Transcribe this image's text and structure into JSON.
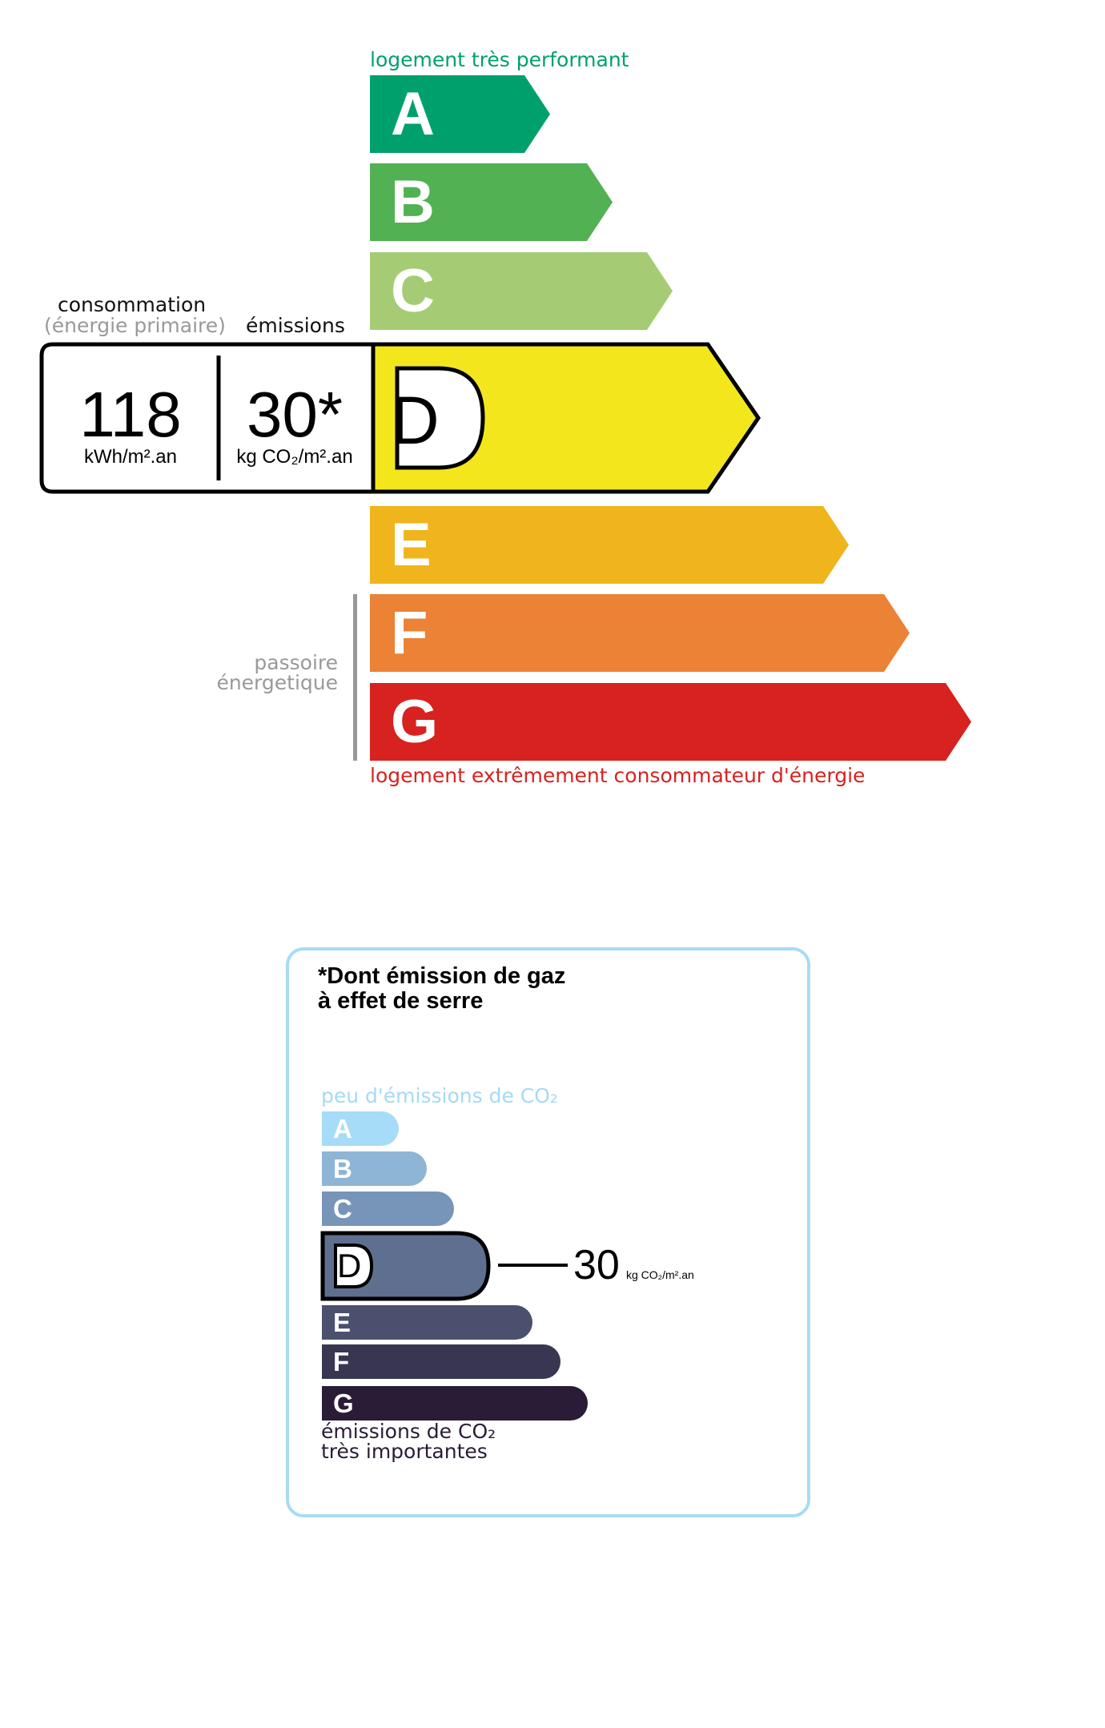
{
  "energy": {
    "top_label": "logement très performant",
    "bottom_label": "logement extrêmement consommateur d'énergie",
    "passoire_line1": "passoire",
    "passoire_line2": "énergetique",
    "consumption_label": "consommation",
    "consumption_sublabel": "(énergie primaire)",
    "emissions_label": "émissions",
    "consumption_value": "118",
    "consumption_unit": "kWh/m².an",
    "emissions_value": "30*",
    "emissions_unit": "kg CO₂/m².an",
    "current_class": "D",
    "classes": [
      {
        "letter": "A",
        "color": "#00a06d"
      },
      {
        "letter": "B",
        "color": "#52b153"
      },
      {
        "letter": "C",
        "color": "#a5cc74"
      },
      {
        "letter": "D",
        "color": "#f3e61d"
      },
      {
        "letter": "E",
        "color": "#f0b41c"
      },
      {
        "letter": "F",
        "color": "#eb8235"
      },
      {
        "letter": "G",
        "color": "#d7221f"
      }
    ]
  },
  "ges": {
    "title_line1": "*Dont émission de gaz",
    "title_line2": "à effet de serre",
    "top_label": "peu d'émissions de CO₂",
    "bottom_line1": "émissions de CO₂",
    "bottom_line2": "très importantes",
    "value": "30",
    "unit": "kg CO₂/m².an",
    "current_class": "D",
    "border_color": "#a6dcf4",
    "classes": [
      {
        "letter": "A",
        "color": "#a6dcf7"
      },
      {
        "letter": "B",
        "color": "#8fb5d6"
      },
      {
        "letter": "C",
        "color": "#7695b8"
      },
      {
        "letter": "D",
        "color": "#5f6f8f"
      },
      {
        "letter": "E",
        "color": "#4b506e"
      },
      {
        "letter": "F",
        "color": "#393652"
      },
      {
        "letter": "G",
        "color": "#2a1c36"
      }
    ]
  }
}
